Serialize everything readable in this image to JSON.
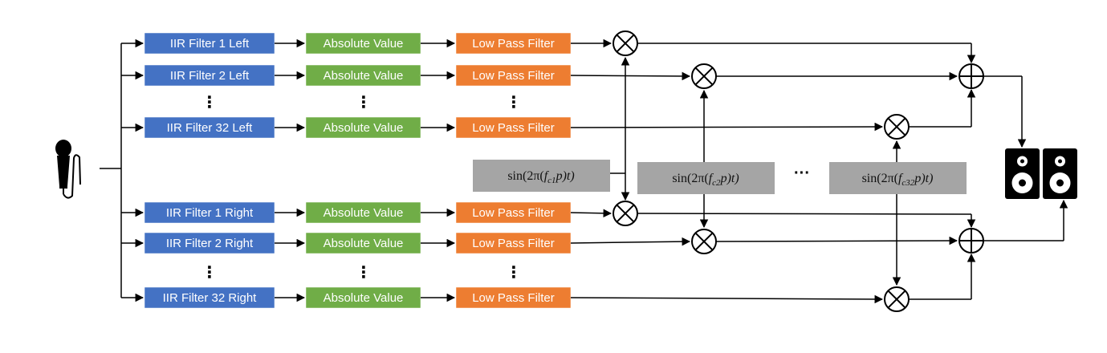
{
  "diagram": {
    "colors": {
      "iir": "#4472c4",
      "abs": "#70ad47",
      "lpf": "#ed7d31",
      "sin": "#a5a5a5",
      "line": "#000000"
    },
    "left_rows": [
      {
        "iir": "IIR Filter 1 Left",
        "abs": "Absolute Value",
        "lpf": "Low Pass Filter"
      },
      {
        "iir": "IIR Filter 2 Left",
        "abs": "Absolute Value",
        "lpf": "Low Pass Filter"
      },
      {
        "iir": "IIR Filter 32 Left",
        "abs": "Absolute Value",
        "lpf": "Low Pass Filter"
      }
    ],
    "right_rows": [
      {
        "iir": "IIR Filter 1 Right",
        "abs": "Absolute Value",
        "lpf": "Low Pass Filter"
      },
      {
        "iir": "IIR Filter 2 Right",
        "abs": "Absolute Value",
        "lpf": "Low Pass Filter"
      },
      {
        "iir": "IIR Filter 32 Right",
        "abs": "Absolute Value",
        "lpf": "Low Pass Filter"
      }
    ],
    "vertical_ellipsis": "⋮",
    "horizontal_ellipsis": "···",
    "sin_prefix": "sin(2π(",
    "sin_var": "f",
    "sin_suffix": "p)t)",
    "sin_subscripts": [
      "c1",
      "c2",
      "c32"
    ],
    "multiply_symbol": "⊗",
    "sum_symbol": "⊕",
    "input_icon": "microphone-icon",
    "output_icon": "speakers-icon"
  }
}
